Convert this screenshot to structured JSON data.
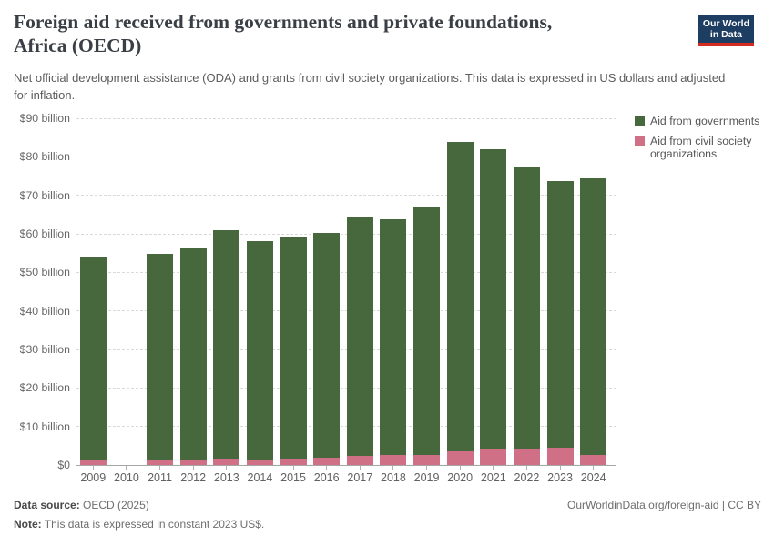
{
  "header": {
    "title_lines": [
      "Foreign aid received from governments and private foundations,",
      "Africa (OECD)"
    ],
    "subtitle": "Net official development assistance (ODA) and grants from civil society organizations. This data is expressed in US dollars and adjusted for inflation.",
    "logo": {
      "line1": "Our World",
      "line2": "in Data",
      "bg_color": "#1d3d63",
      "accent_color": "#d42b21"
    }
  },
  "legend": {
    "items": [
      {
        "label": "Aid from governments",
        "color": "#47673d"
      },
      {
        "label": "Aid from civil society organizations",
        "color": "#cf7086"
      }
    ]
  },
  "chart_data": {
    "type": "bar",
    "stacked": true,
    "title": "Foreign aid received from governments and private foundations, Africa (OECD)",
    "categories": [
      "2009",
      "2010",
      "2011",
      "2012",
      "2013",
      "2014",
      "2015",
      "2016",
      "2017",
      "2018",
      "2019",
      "2020",
      "2021",
      "2022",
      "2023",
      "2024"
    ],
    "series": [
      {
        "name": "Aid from civil society organizations",
        "color": "#cf7086",
        "values": [
          1.2,
          null,
          1.2,
          1.2,
          1.6,
          1.4,
          1.7,
          1.8,
          2.3,
          2.5,
          2.7,
          3.6,
          4.3,
          4.2,
          4.6,
          2.6
        ]
      },
      {
        "name": "Aid from governments",
        "color": "#47673d",
        "values": [
          52.8,
          null,
          53.7,
          55.1,
          59.3,
          56.6,
          57.5,
          58.5,
          62.0,
          61.3,
          64.3,
          80.2,
          77.7,
          73.2,
          69.2,
          71.8
        ]
      }
    ],
    "totals_billion_usd": [
      54.0,
      null,
      54.9,
      56.3,
      60.9,
      58.0,
      59.2,
      60.3,
      64.3,
      63.8,
      67.0,
      83.8,
      82.0,
      77.4,
      73.8,
      74.4
    ],
    "missing_years": [
      "2010"
    ],
    "xlabel": "",
    "ylabel": "",
    "ylim": [
      0,
      90
    ],
    "ytick_step": 10,
    "ytick_labels": [
      "$0",
      "$10 billion",
      "$20 billion",
      "$30 billion",
      "$40 billion",
      "$50 billion",
      "$60 billion",
      "$70 billion",
      "$80 billion",
      "$90 billion"
    ],
    "grid": "horizontal-dashed",
    "legend_position": "top-right"
  },
  "footer": {
    "source_label": "Data source:",
    "source_value": "OECD (2025)",
    "note_label": "Note:",
    "note_value": "This data is expressed in constant 2023 US$.",
    "citation": "OurWorldinData.org/foreign-aid | CC BY"
  }
}
